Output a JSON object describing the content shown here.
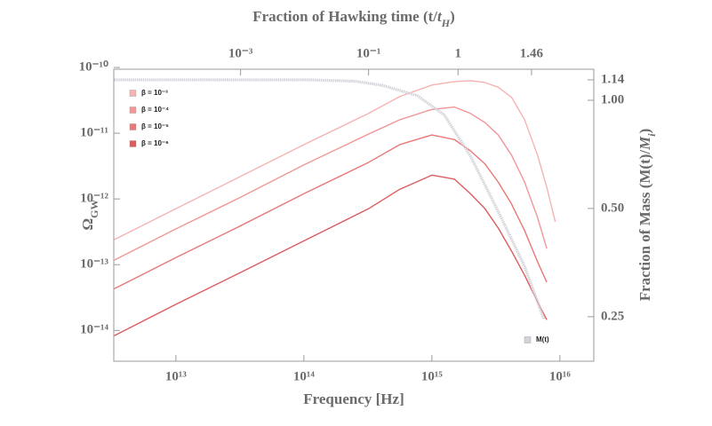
{
  "chart_data": {
    "type": "line",
    "xlabel": "Frequency [Hz]",
    "ylabel": [
      "Ω",
      "GW"
    ],
    "x2label": [
      "Fraction of Hawking time (t/",
      "t",
      "H",
      ")"
    ],
    "y2label": [
      "Fraction of Mass (M(t)/",
      "M",
      "i",
      ")"
    ],
    "xscale": "log",
    "yscale": "log",
    "y2scale": "log",
    "xlim": [
      3270000000000.0,
      1.84e+16
    ],
    "ylim": [
      3.4e-15,
      9.4e-11
    ],
    "y2lim": [
      0.188,
      1.22
    ],
    "xticks": [
      {
        "value": 10000000000000.0,
        "label": "10¹³"
      },
      {
        "value": 100000000000000.0,
        "label": "10¹⁴"
      },
      {
        "value": 1000000000000000.0,
        "label": "10¹⁵"
      },
      {
        "value": 1e+16,
        "label": "10¹⁶"
      }
    ],
    "yticks": [
      {
        "value": 1e-10,
        "label": "10⁻¹⁰"
      },
      {
        "value": 1e-11,
        "label": "10⁻¹¹"
      },
      {
        "value": 1e-12,
        "label": "10⁻¹²"
      },
      {
        "value": 1e-13,
        "label": "10⁻¹³"
      },
      {
        "value": 1e-14,
        "label": "10⁻¹⁴"
      }
    ],
    "y2ticks": [
      1.14,
      {
        "value": 1,
        "label": "1.00"
      },
      {
        "value": 0.5,
        "label": "0.50"
      },
      0.25
    ],
    "x2ticks": [
      {
        "value": 0.001,
        "label": "10⁻³",
        "at": 32000000000000.0
      },
      {
        "value": 0.1,
        "label": "10⁻¹",
        "at": 320000000000000.0
      },
      {
        "value": 1,
        "label": "1",
        "at": 1600000000000000.0
      },
      {
        "value": 1.46,
        "label": "1.46",
        "at": 6000000000000000.0
      }
    ],
    "legend": "upper left",
    "x": [
      3300000000000.0,
      10000000000000.0,
      32000000000000.0,
      100000000000000.0,
      320000000000000.0,
      560000000000000.0,
      1000000000000000.0,
      1500000000000000.0,
      2000000000000000.0,
      2600000000000000.0,
      3300000000000000.0,
      4200000000000000.0,
      5300000000000000.0,
      6700000000000000.0,
      7900000000000000.0,
      9200000000000000.0
    ],
    "series": [
      {
        "name": "β = 10⁻³",
        "color": "#f6b3b3",
        "values": [
          2.4e-13,
          7.1e-13,
          2.2e-12,
          6.7e-12,
          2e-11,
          3.6e-11,
          5.4e-11,
          6.1e-11,
          6.3e-11,
          5.9e-11,
          5e-11,
          3.5e-11,
          1.6e-11,
          4.6e-12,
          1.5e-12,
          4.5e-13
        ]
      },
      {
        "name": "β = 10⁻⁴",
        "color": "#f19797",
        "values": [
          1.17e-13,
          3.5e-13,
          1.06e-12,
          3.3e-12,
          9.7e-12,
          1.6e-11,
          2.3e-11,
          2.5e-11,
          2e-11,
          1.45e-11,
          9.4e-12,
          4.6e-12,
          1.8e-12,
          5.2e-13,
          1.75e-13,
          null
        ]
      },
      {
        "name": "β = 10⁻⁵",
        "color": "#ea7777",
        "values": [
          4.3e-14,
          1.28e-13,
          3.9e-13,
          1.2e-12,
          3.6e-12,
          6.7e-12,
          9.4e-12,
          8e-12,
          5.4e-12,
          3.4e-12,
          1.8e-12,
          8.3e-13,
          3.3e-13,
          1.1e-13,
          5.4e-14,
          null
        ]
      },
      {
        "name": "β = 10⁻⁶",
        "color": "#dc5c5c",
        "values": [
          8.3e-15,
          2.5e-14,
          7.6e-14,
          2.3e-13,
          7.1e-13,
          1.4e-12,
          2.3e-12,
          2e-12,
          1.2e-12,
          7.1e-13,
          3.6e-13,
          1.6e-13,
          6.9e-14,
          2.7e-14,
          1.45e-14,
          null
        ]
      },
      {
        "name": "M(t)",
        "color": "#d2d2da",
        "axis": "y2",
        "legend": "lower right",
        "x": [
          3300000000000.0,
          23000000000000.0,
          110000000000000.0,
          250000000000000.0,
          410000000000000.0,
          770000000000000.0,
          1250000000000000.0,
          2000000000000000.0,
          3300000000000000.0,
          5300000000000000.0,
          7500000000000000.0
        ],
        "values": [
          1.14,
          1.14,
          1.14,
          1.13,
          1.1,
          1.03,
          0.91,
          0.7,
          0.49,
          0.345,
          0.246
        ]
      }
    ]
  }
}
